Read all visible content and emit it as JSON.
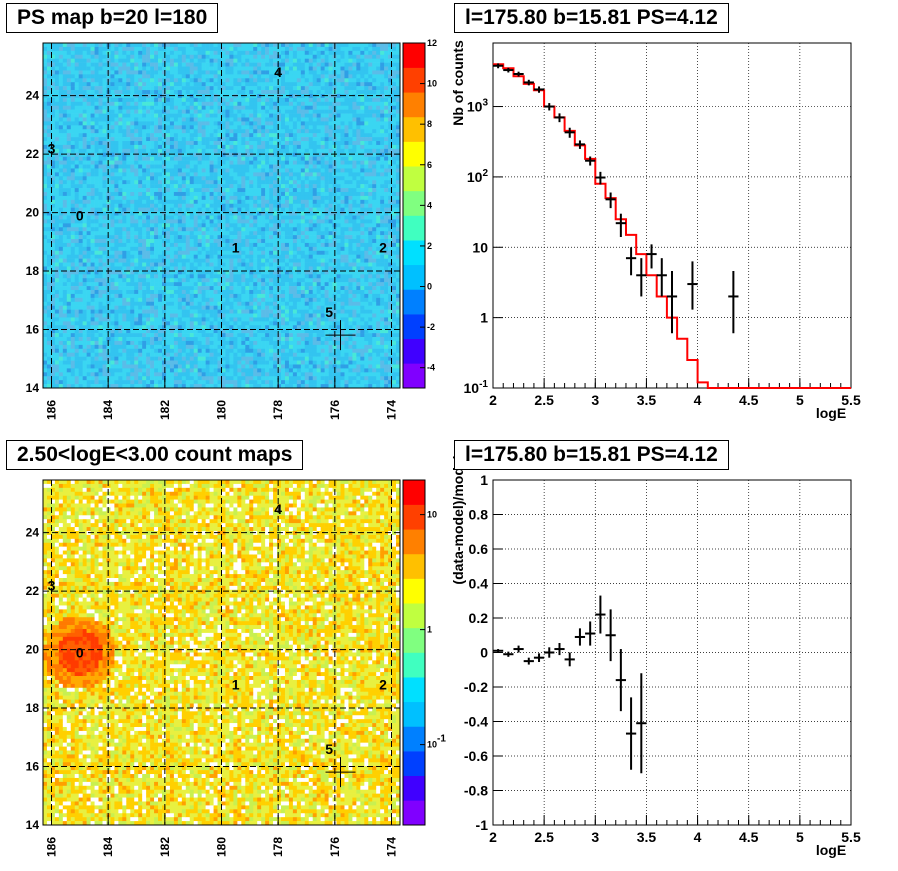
{
  "panels": {
    "map_ps_title": "PS map b=20 l=180",
    "spectrum_title": "l=175.80 b=15.81 PS=4.12",
    "map_counts_title": "2.50<logE<3.00 count maps",
    "residual_title": "l=175.80 b=15.81 PS=4.12"
  },
  "colors": {
    "model_line": "#ff0000",
    "data_points": "#000000",
    "palette": [
      "#8000ff",
      "#4000ff",
      "#0040ff",
      "#0080ff",
      "#00c0ff",
      "#00e0ff",
      "#40ffc0",
      "#80ff80",
      "#c0ff40",
      "#ffff00",
      "#ffc000",
      "#ff8000",
      "#ff4000",
      "#ff0000"
    ]
  },
  "chart_data": [
    {
      "type": "heatmap",
      "title": "PS map b=20 l=180",
      "xlabel": "",
      "ylabel": "",
      "xlim": [
        186.3,
        173.7
      ],
      "ylim": [
        14,
        25.8
      ],
      "x_ticks": [
        "186",
        "184",
        "182",
        "180",
        "178",
        "176",
        "174"
      ],
      "y_ticks": [
        "14",
        "16",
        "18",
        "20",
        "22",
        "24"
      ],
      "colorbar_ticks": [
        "-4",
        "-2",
        "0",
        "2",
        "4",
        "6",
        "8",
        "10",
        "12"
      ],
      "colorbar_range": [
        -5,
        12
      ],
      "sources": [
        {
          "label": "0",
          "l": 185.0,
          "b": 19.9
        },
        {
          "label": "1",
          "l": 179.5,
          "b": 18.8
        },
        {
          "label": "2",
          "l": 174.3,
          "b": 18.8
        },
        {
          "label": "3",
          "l": 186.0,
          "b": 22.2
        },
        {
          "label": "4",
          "l": 178.0,
          "b": 24.8
        },
        {
          "label": "5",
          "l": 176.2,
          "b": 16.6
        }
      ],
      "marker": {
        "l": 175.8,
        "b": 15.81
      },
      "grid": true
    },
    {
      "type": "line",
      "title": "l=175.80 b=15.81 PS=4.12",
      "xlabel": "logE",
      "ylabel": "Nb of counts",
      "xlim": [
        2,
        5.5
      ],
      "ylim": [
        0.1,
        8000
      ],
      "yscale": "log",
      "x_ticks": [
        "2",
        "2.5",
        "3",
        "3.5",
        "4",
        "4.5",
        "5",
        "5.5"
      ],
      "y_ticks": [
        "10^{-1}",
        "1",
        "10",
        "10^{2}",
        "10^{3}"
      ],
      "model_bins": [
        2.0,
        2.1,
        2.2,
        2.3,
        2.4,
        2.5,
        2.6,
        2.7,
        2.8,
        2.9,
        3.0,
        3.1,
        3.2,
        3.3,
        3.4,
        3.5,
        3.6,
        3.7,
        3.8,
        3.9,
        4.0,
        4.1,
        5.5
      ],
      "model_values": [
        4000,
        3500,
        2700,
        2100,
        1700,
        1000,
        700,
        450,
        280,
        180,
        80,
        50,
        25,
        15,
        8,
        4,
        2,
        1,
        0.5,
        0.25,
        0.12,
        0.1
      ],
      "data": [
        {
          "x": 2.05,
          "y": 3800,
          "err": [
            300,
            300
          ]
        },
        {
          "x": 2.15,
          "y": 3300,
          "err": [
            250,
            250
          ]
        },
        {
          "x": 2.25,
          "y": 2900,
          "err": [
            230,
            230
          ]
        },
        {
          "x": 2.35,
          "y": 2200,
          "err": [
            200,
            200
          ]
        },
        {
          "x": 2.45,
          "y": 1750,
          "err": [
            180,
            180
          ]
        },
        {
          "x": 2.55,
          "y": 1000,
          "err": [
            120,
            120
          ]
        },
        {
          "x": 2.65,
          "y": 700,
          "err": [
            100,
            100
          ]
        },
        {
          "x": 2.75,
          "y": 430,
          "err": [
            70,
            70
          ]
        },
        {
          "x": 2.85,
          "y": 290,
          "err": [
            40,
            40
          ]
        },
        {
          "x": 2.95,
          "y": 170,
          "err": [
            25,
            25
          ]
        },
        {
          "x": 3.05,
          "y": 98,
          "err": [
            20,
            20
          ]
        },
        {
          "x": 3.15,
          "y": 48,
          "err": [
            12,
            12
          ]
        },
        {
          "x": 3.25,
          "y": 22,
          "err": [
            8,
            8
          ]
        },
        {
          "x": 3.35,
          "y": 7,
          "err": [
            3,
            3
          ]
        },
        {
          "x": 3.45,
          "y": 4,
          "err": [
            2,
            3
          ]
        },
        {
          "x": 3.55,
          "y": 8,
          "err": [
            3,
            3
          ]
        },
        {
          "x": 3.65,
          "y": 4,
          "err": [
            2,
            3
          ]
        },
        {
          "x": 3.75,
          "y": 2,
          "err": [
            1.4,
            2.6
          ]
        },
        {
          "x": 3.95,
          "y": 3,
          "err": [
            1.7,
            3.3
          ]
        },
        {
          "x": 4.35,
          "y": 2,
          "err": [
            1.4,
            2.6
          ]
        }
      ],
      "grid": true
    },
    {
      "type": "heatmap",
      "title": "2.50<logE<3.00 count maps",
      "xlabel": "",
      "ylabel": "",
      "xlim": [
        186.3,
        173.7
      ],
      "ylim": [
        14,
        25.8
      ],
      "x_ticks": [
        "186",
        "184",
        "182",
        "180",
        "178",
        "176",
        "174"
      ],
      "y_ticks": [
        "14",
        "16",
        "18",
        "20",
        "22",
        "24"
      ],
      "colorbar_ticks": [
        "10^{-1}",
        "1",
        "10"
      ],
      "colorbar_scale": "log",
      "sources": [
        {
          "label": "0",
          "l": 185.0,
          "b": 19.9
        },
        {
          "label": "1",
          "l": 179.5,
          "b": 18.8
        },
        {
          "label": "2",
          "l": 174.3,
          "b": 18.8
        },
        {
          "label": "3",
          "l": 186.0,
          "b": 22.2
        },
        {
          "label": "4",
          "l": 178.0,
          "b": 24.8
        },
        {
          "label": "5",
          "l": 176.2,
          "b": 16.6
        }
      ],
      "marker": {
        "l": 175.8,
        "b": 15.81
      },
      "grid": true
    },
    {
      "type": "scatter",
      "title": "l=175.80 b=15.81 PS=4.12",
      "xlabel": "logE",
      "ylabel": "(data-model)/model",
      "xlim": [
        2,
        5.5
      ],
      "ylim": [
        -1,
        1
      ],
      "x_ticks": [
        "2",
        "2.5",
        "3",
        "3.5",
        "4",
        "4.5",
        "5",
        "5.5"
      ],
      "y_ticks": [
        "-1",
        "-0.8",
        "-0.6",
        "-0.4",
        "-0.2",
        "0",
        "0.2",
        "0.4",
        "0.6",
        "0.8",
        "1"
      ],
      "data": [
        {
          "x": 2.05,
          "y": 0.01,
          "err": 0.01
        },
        {
          "x": 2.15,
          "y": -0.01,
          "err": 0.015
        },
        {
          "x": 2.25,
          "y": 0.02,
          "err": 0.02
        },
        {
          "x": 2.35,
          "y": -0.05,
          "err": 0.02
        },
        {
          "x": 2.45,
          "y": -0.03,
          "err": 0.025
        },
        {
          "x": 2.55,
          "y": 0.0,
          "err": 0.03
        },
        {
          "x": 2.65,
          "y": 0.02,
          "err": 0.035
        },
        {
          "x": 2.75,
          "y": -0.04,
          "err": 0.04
        },
        {
          "x": 2.85,
          "y": 0.09,
          "err": 0.05
        },
        {
          "x": 2.95,
          "y": 0.11,
          "err": 0.07
        },
        {
          "x": 3.05,
          "y": 0.22,
          "err": 0.11
        },
        {
          "x": 3.15,
          "y": 0.1,
          "err": 0.15
        },
        {
          "x": 3.25,
          "y": -0.16,
          "err": 0.18
        },
        {
          "x": 3.35,
          "y": -0.47,
          "err": 0.21
        },
        {
          "x": 3.45,
          "y": -0.41,
          "err": 0.29
        }
      ],
      "grid": true
    }
  ]
}
